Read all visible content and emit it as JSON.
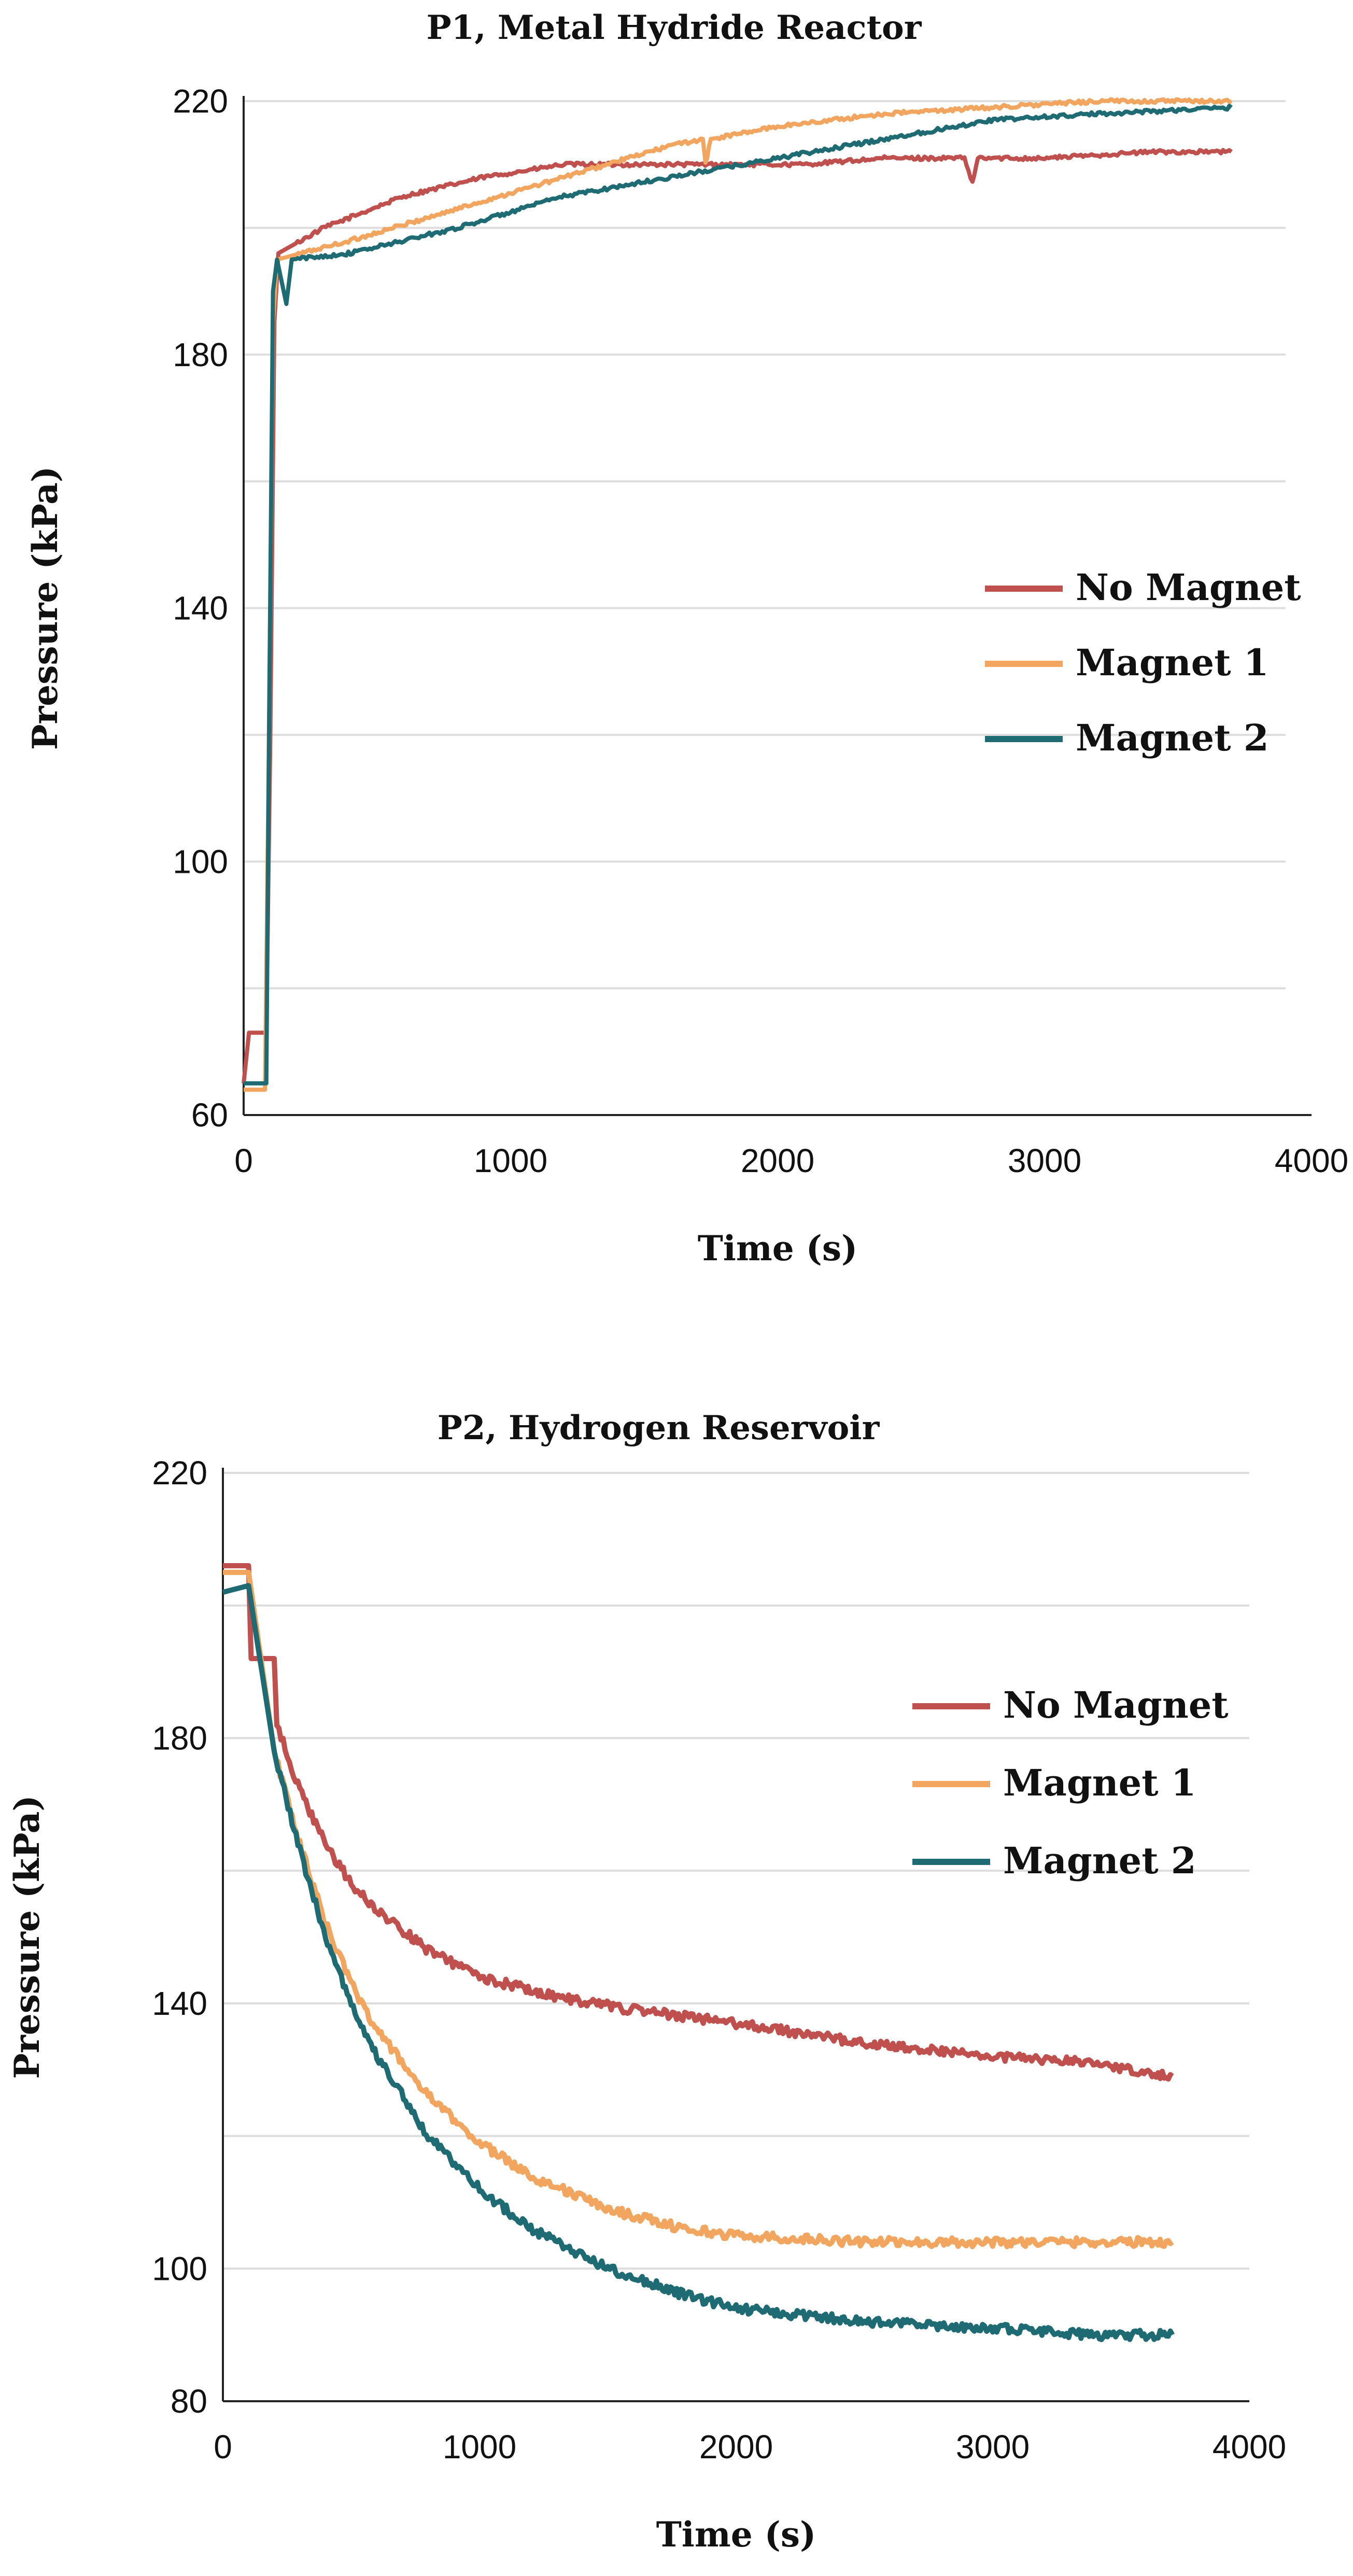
{
  "colors": {
    "no_magnet": "#c0504d",
    "magnet_1": "#f2a55e",
    "magnet_2": "#1f6b73",
    "grid": "#dddddd",
    "axis": "#222222"
  },
  "chart_data": [
    {
      "type": "line",
      "title": "P1, Metal Hydride Reactor",
      "xlabel": "Time (s)",
      "ylabel": "Pressure (kPa)",
      "xlim": [
        0,
        4000
      ],
      "ylim": [
        60,
        220
      ],
      "xticks": [
        0,
        1000,
        2000,
        3000,
        4000
      ],
      "yticks": [
        60,
        100,
        140,
        180,
        220
      ],
      "grid_step": 20,
      "legend": "right",
      "series": [
        {
          "name": "No Magnet",
          "color_key": "no_magnet",
          "points": [
            [
              0,
              65
            ],
            [
              20,
              73
            ],
            [
              70,
              73
            ],
            [
              85,
              73
            ],
            [
              100,
              120
            ],
            [
              115,
              185
            ],
            [
              130,
              196
            ],
            [
              300,
              200
            ],
            [
              600,
              205
            ],
            [
              900,
              208
            ],
            [
              1200,
              210
            ],
            [
              1500,
              210
            ],
            [
              1800,
              210
            ],
            [
              2100,
              210
            ],
            [
              2400,
              211
            ],
            [
              2700,
              211
            ],
            [
              2730,
              207
            ],
            [
              2750,
              211
            ],
            [
              3000,
              211
            ],
            [
              3400,
              212
            ],
            [
              3700,
              212
            ]
          ]
        },
        {
          "name": "Magnet 1",
          "color_key": "magnet_1",
          "points": [
            [
              0,
              64
            ],
            [
              80,
              64
            ],
            [
              95,
              120
            ],
            [
              110,
              185
            ],
            [
              125,
              195
            ],
            [
              400,
              198
            ],
            [
              800,
              203
            ],
            [
              1200,
              208
            ],
            [
              1600,
              213
            ],
            [
              1720,
              214
            ],
            [
              1730,
              210
            ],
            [
              1750,
              214
            ],
            [
              2000,
              216
            ],
            [
              2400,
              218
            ],
            [
              2800,
              219
            ],
            [
              3200,
              220
            ],
            [
              3700,
              220
            ]
          ]
        },
        {
          "name": "Magnet 2",
          "color_key": "magnet_2",
          "points": [
            [
              0,
              65
            ],
            [
              85,
              65
            ],
            [
              95,
              120
            ],
            [
              110,
              190
            ],
            [
              125,
              195
            ],
            [
              160,
              188
            ],
            [
              180,
              195
            ],
            [
              400,
              196
            ],
            [
              800,
              200
            ],
            [
              1200,
              205
            ],
            [
              1600,
              208
            ],
            [
              2000,
              211
            ],
            [
              2400,
              214
            ],
            [
              2800,
              217
            ],
            [
              3200,
              218
            ],
            [
              3700,
              219
            ]
          ]
        }
      ]
    },
    {
      "type": "line",
      "title": "P2, Hydrogen Reservoir",
      "xlabel": "Time (s)",
      "ylabel": "Pressure (kPa)",
      "xlim": [
        0,
        4000
      ],
      "ylim": [
        80,
        220
      ],
      "xticks": [
        0,
        1000,
        2000,
        3000,
        4000
      ],
      "yticks": [
        80,
        100,
        140,
        180,
        220
      ],
      "grid_step": 20,
      "legend": "right",
      "series": [
        {
          "name": "No Magnet",
          "color_key": "no_magnet",
          "points": [
            [
              0,
              206
            ],
            [
              100,
              206
            ],
            [
              110,
              192
            ],
            [
              200,
              192
            ],
            [
              210,
              182
            ],
            [
              300,
              172
            ],
            [
              400,
              164
            ],
            [
              500,
              158
            ],
            [
              600,
              154
            ],
            [
              800,
              148
            ],
            [
              1000,
              144
            ],
            [
              1300,
              141
            ],
            [
              1600,
              139
            ],
            [
              2000,
              137
            ],
            [
              2500,
              134
            ],
            [
              3000,
              132
            ],
            [
              3400,
              131
            ],
            [
              3700,
              129
            ]
          ]
        },
        {
          "name": "Magnet 1",
          "color_key": "magnet_1",
          "points": [
            [
              0,
              205
            ],
            [
              100,
              205
            ],
            [
              200,
              178
            ],
            [
              300,
              164
            ],
            [
              400,
              152
            ],
            [
              500,
              143
            ],
            [
              600,
              136
            ],
            [
              800,
              126
            ],
            [
              1000,
              119
            ],
            [
              1200,
              114
            ],
            [
              1500,
              109
            ],
            [
              1800,
              106
            ],
            [
              2000,
              105
            ],
            [
              2500,
              104
            ],
            [
              3000,
              104
            ],
            [
              3700,
              104
            ]
          ]
        },
        {
          "name": "Magnet 2",
          "color_key": "magnet_2",
          "points": [
            [
              0,
              202
            ],
            [
              100,
              203
            ],
            [
              200,
              178
            ],
            [
              300,
              163
            ],
            [
              400,
              150
            ],
            [
              500,
              140
            ],
            [
              600,
              132
            ],
            [
              800,
              120
            ],
            [
              1000,
              112
            ],
            [
              1200,
              106
            ],
            [
              1500,
              100
            ],
            [
              1800,
              96
            ],
            [
              2000,
              94
            ],
            [
              2500,
              92
            ],
            [
              3000,
              91
            ],
            [
              3400,
              90
            ],
            [
              3700,
              90
            ]
          ]
        }
      ]
    }
  ]
}
